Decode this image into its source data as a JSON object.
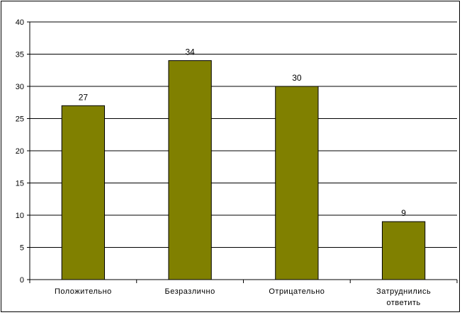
{
  "chart_data": {
    "type": "bar",
    "categories": [
      [
        "Положительно"
      ],
      [
        "Безразлично"
      ],
      [
        "Отрицательно"
      ],
      [
        "Затруднились",
        "ответить"
      ]
    ],
    "values": [
      27,
      34,
      30,
      9
    ],
    "data_labels": [
      "27",
      "34",
      "30",
      "9"
    ],
    "y_ticks": [
      "0",
      "5",
      "10",
      "15",
      "20",
      "25",
      "30",
      "35",
      "40"
    ],
    "ylim": [
      0,
      40
    ],
    "grid": true,
    "legend": "none",
    "colors": {
      "bar_fill": "#808000",
      "bar_stroke": "#000000",
      "grid": "#000000",
      "background": "#ffffff"
    }
  }
}
